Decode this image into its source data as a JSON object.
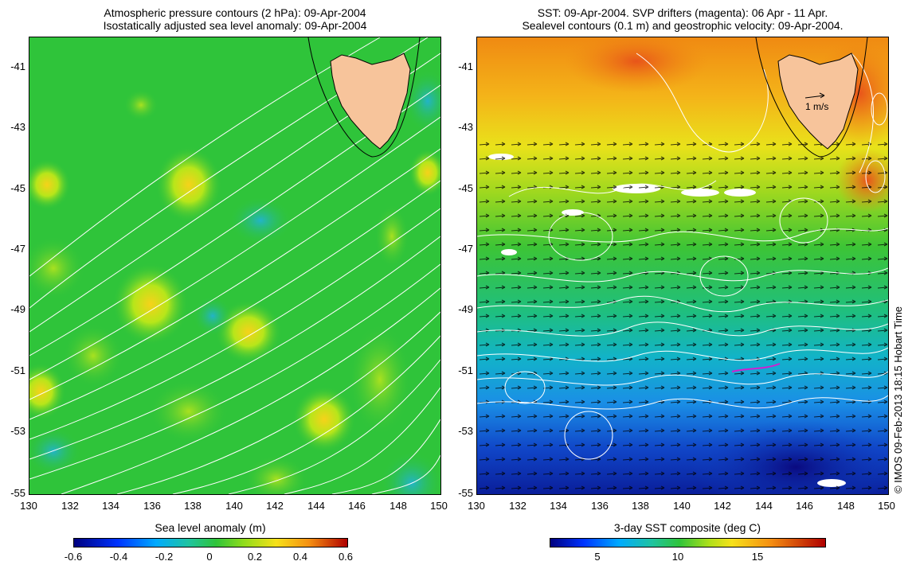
{
  "left_panel": {
    "title_line1": "Atmospheric pressure contours (2 hPa): 09-Apr-2004",
    "title_line2": "Isostatically adjusted sea level anomaly: 09-Apr-2004",
    "y_ticks": [
      "-41",
      "-43",
      "-45",
      "-47",
      "-49",
      "-51",
      "-53",
      "-55"
    ],
    "x_ticks": [
      "130",
      "132",
      "134",
      "136",
      "138",
      "140",
      "142",
      "144",
      "146",
      "148",
      "150"
    ],
    "colorbar_label": "Sea level anomaly (m)",
    "colorbar_ticks": [
      "-0.6",
      "-0.4",
      "-0.2",
      "0",
      "0.2",
      "0.4",
      "0.6"
    ],
    "colors": {
      "base": "#2fc43a",
      "land": "#f7c49b",
      "contour": "#ffffff"
    }
  },
  "right_panel": {
    "title_line1": "SST: 09-Apr-2004. SVP drifters (magenta): 06 Apr - 11 Apr.",
    "title_line2": "Sealevel contours (0.1 m) and geostrophic velocity: 09-Apr-2004.",
    "y_ticks": [
      "-41",
      "-43",
      "-45",
      "-47",
      "-49",
      "-51",
      "-53",
      "-55"
    ],
    "x_ticks": [
      "130",
      "132",
      "134",
      "136",
      "138",
      "140",
      "142",
      "144",
      "146",
      "148",
      "150"
    ],
    "velocity_scale_label": "1 m/s",
    "colorbar_label": "3-day SST composite (deg C)",
    "colorbar_ticks": [
      "5",
      "10",
      "15"
    ],
    "colors": {
      "land": "#f7c49b",
      "contour": "#ffffff",
      "arrow": "#000000"
    }
  },
  "credit": "© IMOS 09-Feb-2013 18:15 Hobart Time"
}
